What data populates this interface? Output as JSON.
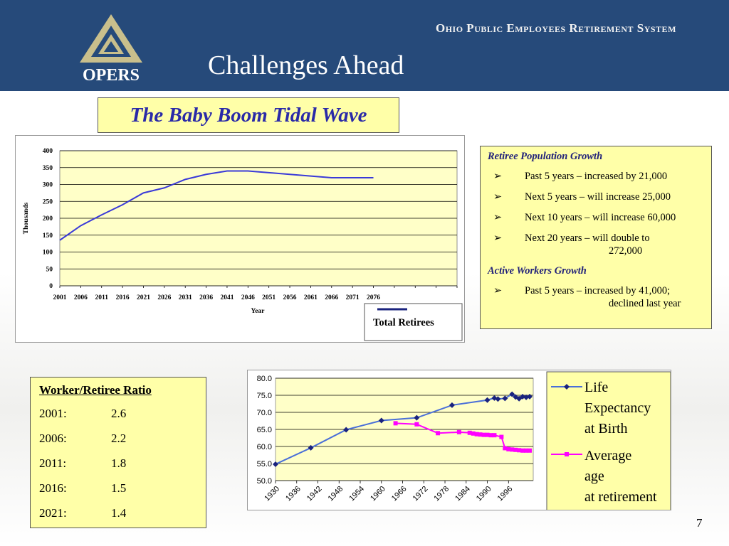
{
  "header": {
    "org_name": "Ohio Public Employees Retirement System",
    "logo_text": "OPERS",
    "title": "Challenges Ahead"
  },
  "subtitle": "The Baby Boom Tidal Wave",
  "info": {
    "heading1": "Retiree Population Growth",
    "items1": [
      {
        "text": "Past 5 years – increased by 21,000"
      },
      {
        "text": "Next 5 years – will increase 25,000"
      },
      {
        "text": "Next 10 years – will increase 60,000"
      },
      {
        "text": "Next 20 years – will double to",
        "cont": "272,000"
      }
    ],
    "heading2": "Active Workers Growth",
    "items2": [
      {
        "text": "Past 5 years – increased by 41,000;",
        "cont": "declined last year"
      }
    ],
    "bullet": "➢"
  },
  "ratio": {
    "title": "Worker/Retiree  Ratio",
    "rows": [
      {
        "year": "2001:",
        "value": "2.6"
      },
      {
        "year": "2006:",
        "value": "2.2"
      },
      {
        "year": "2011:",
        "value": "1.8"
      },
      {
        "year": "2016:",
        "value": "1.5"
      },
      {
        "year": "2021:",
        "value": "1.4"
      }
    ]
  },
  "page_number": "7",
  "colors": {
    "header_bg": "#264a7a",
    "plot_bg": "#ffffc8",
    "box_bg": "#ffffa8",
    "subtitle_text": "#2a2aa8",
    "series_blue": "#3a5fcd",
    "series_navy": "#1a237e",
    "series_magenta": "#ff00ff"
  },
  "chart_data": [
    {
      "type": "line",
      "xlabel": "Year",
      "ylabel": "Thousands",
      "ylim": [
        0,
        400
      ],
      "yticks": [
        0,
        50,
        100,
        150,
        200,
        250,
        300,
        350,
        400
      ],
      "categories": [
        "2001",
        "2006",
        "2011",
        "2016",
        "2021",
        "2026",
        "2031",
        "2036",
        "2041",
        "2046",
        "2051",
        "2056",
        "2061",
        "2066",
        "2071",
        "2076"
      ],
      "grid": true,
      "legend_position": "bottom-right",
      "series": [
        {
          "name": "Total Retirees",
          "color": "#3a3ad8",
          "values": [
            135,
            178,
            210,
            240,
            275,
            290,
            315,
            330,
            340,
            340,
            335,
            330,
            325,
            320,
            320,
            320
          ]
        }
      ]
    },
    {
      "type": "line",
      "ylim": [
        50,
        80
      ],
      "yticks": [
        "50.0",
        "55.0",
        "60.0",
        "65.0",
        "70.0",
        "75.0",
        "80.0"
      ],
      "xticks": [
        "1930",
        "1936",
        "1942",
        "1948",
        "1954",
        "1960",
        "1966",
        "1972",
        "1978",
        "1984",
        "1990",
        "1996"
      ],
      "xlim": [
        1930,
        2003
      ],
      "grid": true,
      "legend_position": "right",
      "series": [
        {
          "name": "Life Expectancy at Birth",
          "color": "#1a237e",
          "line_color": "#4a6fd8",
          "marker": "diamond",
          "points": [
            [
              1930,
              54.8
            ],
            [
              1940,
              59.6
            ],
            [
              1950,
              64.9
            ],
            [
              1960,
              67.6
            ],
            [
              1970,
              68.4
            ],
            [
              1980,
              72.1
            ],
            [
              1990,
              73.6
            ],
            [
              1992,
              74.2
            ],
            [
              1993,
              73.9
            ],
            [
              1995,
              74.1
            ],
            [
              1997,
              75.3
            ],
            [
              1998,
              74.5
            ],
            [
              1999,
              74.0
            ],
            [
              2000,
              74.6
            ],
            [
              2001,
              74.4
            ],
            [
              2002,
              74.6
            ]
          ]
        },
        {
          "name": "Average age at retirement",
          "color": "#ff00ff",
          "marker": "square",
          "points": [
            [
              1964,
              66.8
            ],
            [
              1970,
              66.5
            ],
            [
              1976,
              63.9
            ],
            [
              1982,
              64.2
            ],
            [
              1985,
              64.0
            ],
            [
              1986,
              63.8
            ],
            [
              1987,
              63.6
            ],
            [
              1988,
              63.5
            ],
            [
              1989,
              63.4
            ],
            [
              1990,
              63.4
            ],
            [
              1991,
              63.3
            ],
            [
              1992,
              63.3
            ],
            [
              1994,
              62.8
            ],
            [
              1995,
              59.5
            ],
            [
              1996,
              59.2
            ],
            [
              1997,
              59.1
            ],
            [
              1998,
              59.0
            ],
            [
              1999,
              58.9
            ],
            [
              2000,
              58.8
            ],
            [
              2001,
              58.8
            ],
            [
              2002,
              58.8
            ]
          ]
        }
      ]
    }
  ]
}
